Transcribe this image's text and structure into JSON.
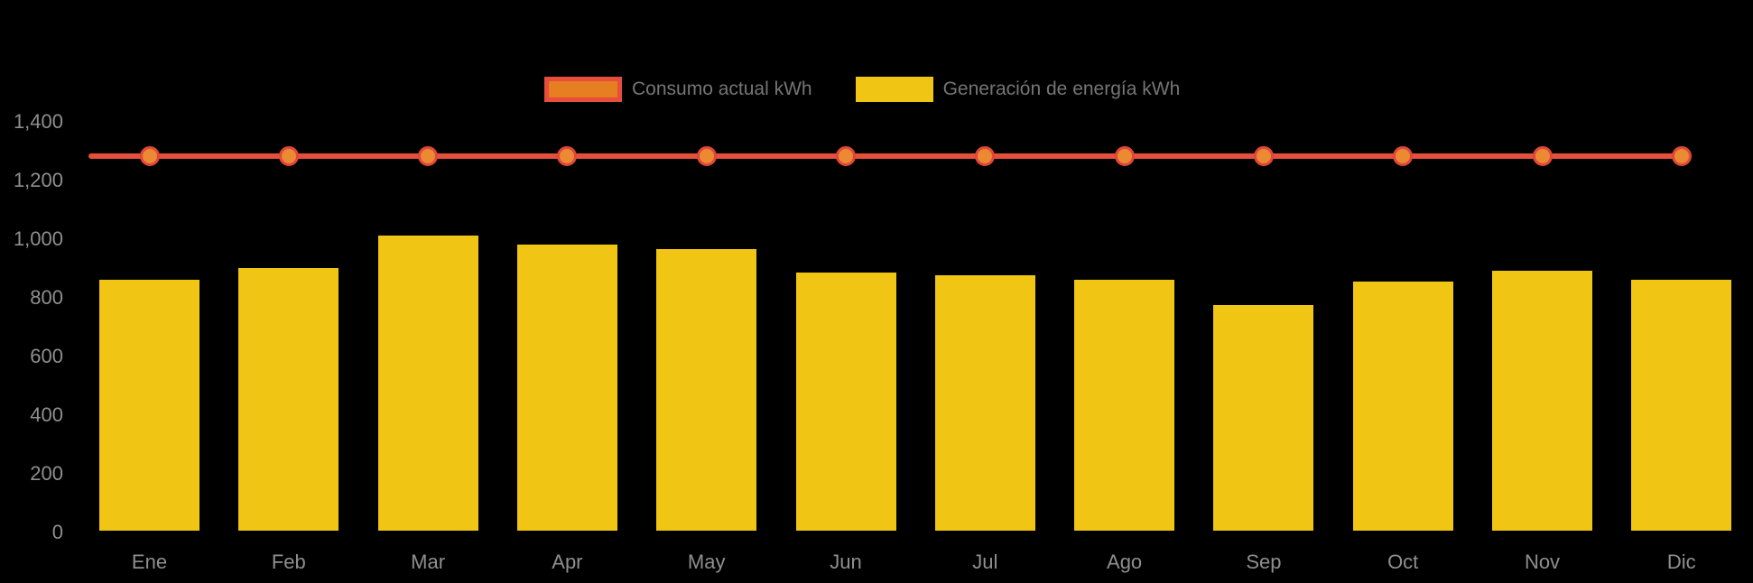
{
  "chart_data": {
    "type": "combo",
    "title": "",
    "categories": [
      "Ene",
      "Feb",
      "Mar",
      "Apr",
      "May",
      "Jun",
      "Jul",
      "Ago",
      "Sep",
      "Oct",
      "Nov",
      "Dic"
    ],
    "series": [
      {
        "name": "Consumo actual kWh",
        "type": "line",
        "values": [
          1275,
          1275,
          1275,
          1275,
          1275,
          1275,
          1275,
          1275,
          1275,
          1275,
          1275,
          1275
        ]
      },
      {
        "name": "Generación de energía kWh",
        "type": "bar",
        "values": [
          855,
          895,
          1005,
          975,
          960,
          880,
          870,
          855,
          770,
          850,
          885,
          855
        ]
      }
    ],
    "ylabel": "",
    "xlabel": "",
    "ylim": [
      0,
      1400
    ],
    "ytick_step": 200,
    "ytick_labels": [
      "0",
      "200",
      "400",
      "600",
      "800",
      "1,000",
      "1,200",
      "1,400"
    ],
    "grid": "off",
    "axis_lines": "off",
    "legend_position": "top-center"
  },
  "colors": {
    "background": "#000000",
    "bar_fill": "#F0C514",
    "line_stroke": "#E5503C",
    "point_fill": "#EB8A32",
    "point_ring": "#E0463A",
    "legend_line_swatch_fill": "#E67E22",
    "legend_line_swatch_border": "#E74C3C",
    "legend_text": "#757575",
    "axis_text": "#8F8F8F"
  },
  "legend": {
    "items": [
      {
        "label": "Consumo actual kWh"
      },
      {
        "label": "Generación de energía kWh"
      }
    ]
  }
}
